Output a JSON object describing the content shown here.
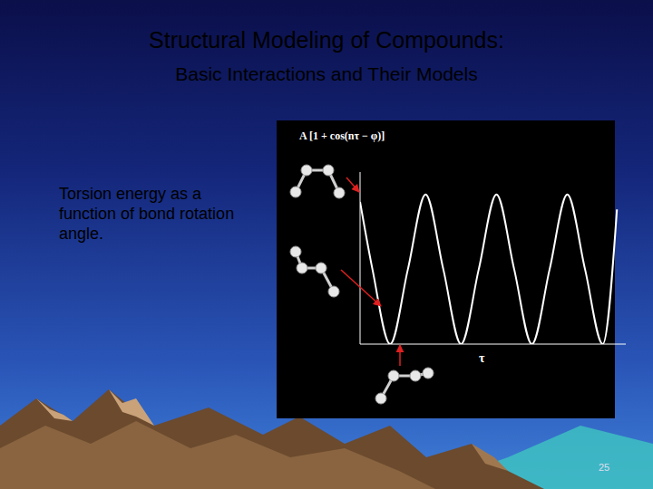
{
  "slide": {
    "title": "Structural Modeling of Compounds:",
    "subtitle": "Basic Interactions and Their Models",
    "text": "Torsion energy as a function of bond rotation angle.",
    "page_number": "25"
  },
  "chart_data": {
    "type": "line",
    "title": "A [1 + cos(nτ − φ)]",
    "x_label": "τ",
    "x": [
      0,
      0.7,
      1.7,
      2.7,
      3.7,
      4.7,
      5.7,
      6.7,
      7.7,
      8.7,
      9.7,
      10.7,
      11.7,
      12.7,
      13.7,
      14.5
    ],
    "values": [
      1.9,
      1.0,
      0,
      1.0,
      2.0,
      1.0,
      0,
      1.0,
      2.0,
      1.0,
      0,
      1.0,
      2.0,
      1.0,
      0,
      1.8
    ],
    "xlim": [
      0,
      15
    ],
    "ylim": [
      0,
      2.3
    ],
    "xticks": [],
    "yticks": [],
    "tick_labels": false,
    "grid": false,
    "color": "#ffffff"
  }
}
